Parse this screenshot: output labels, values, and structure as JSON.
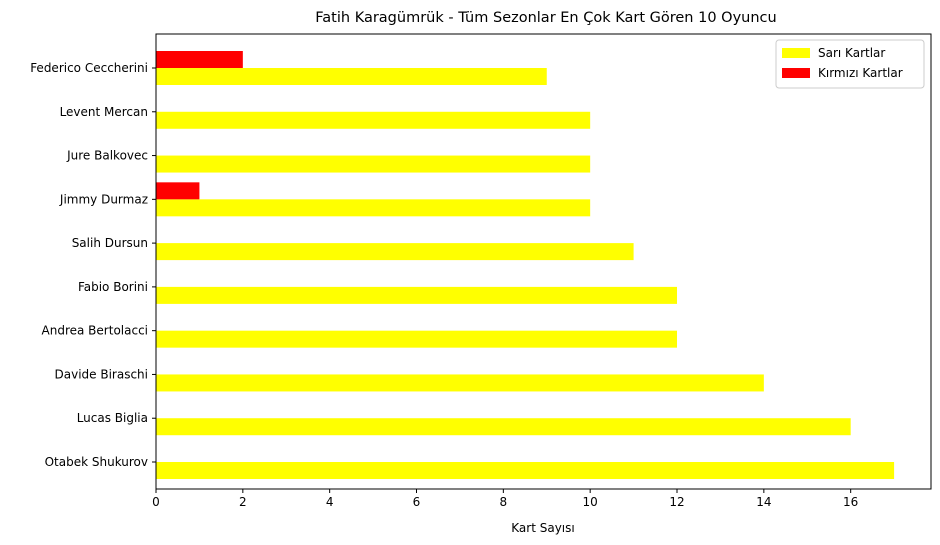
{
  "chart_data": {
    "type": "bar",
    "orientation": "horizontal",
    "title": "Fatih Karagümrük - Tüm Sezonlar En Çok Kart Gören 10 Oyuncu",
    "xlabel": "Kart Sayısı",
    "ylabel": "",
    "categories": [
      "Otabek Shukurov",
      "Lucas Biglia",
      "Davide Biraschi",
      "Andrea Bertolacci",
      "Fabio Borini",
      "Salih Dursun",
      "Jimmy Durmaz",
      "Jure Balkovec",
      "Levent Mercan",
      "Federico Ceccherini"
    ],
    "series": [
      {
        "name": "Sarı Kartlar",
        "color": "#ffff00",
        "values": [
          17,
          16,
          14,
          12,
          12,
          11,
          10,
          10,
          10,
          9
        ]
      },
      {
        "name": "Kırmızı Kartlar",
        "color": "#ff0000",
        "values": [
          0,
          0,
          0,
          0,
          0,
          0,
          1,
          0,
          0,
          2
        ]
      }
    ],
    "xlim": [
      0,
      17.85
    ],
    "xticks": [
      0,
      2,
      4,
      6,
      8,
      10,
      12,
      14,
      16
    ],
    "grid": false,
    "legend_position": "top-right"
  }
}
